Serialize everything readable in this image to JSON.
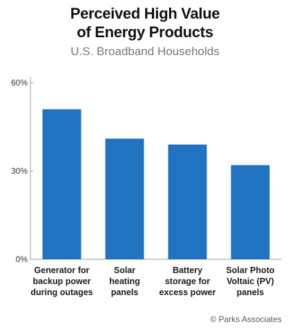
{
  "chart_data": {
    "type": "bar",
    "title": "Perceived High Value\nof Energy Products",
    "subtitle": "U.S. Broadband Households",
    "categories": [
      "Generator for\nbackup power\nduring outages",
      "Solar\nheating\npanels",
      "Battery\nstorage for\nexcess power",
      "Solar Photo\nVoltaic (PV)\npanels"
    ],
    "values": [
      51,
      41,
      39,
      32
    ],
    "value_unit": "%",
    "ylim": [
      0,
      60
    ],
    "yticks": [
      0,
      30,
      60
    ],
    "ytick_labels": [
      "0%",
      "30%",
      "60%"
    ],
    "bar_color": "#1f73c1",
    "grid": false,
    "source": "© Parks Associates"
  }
}
